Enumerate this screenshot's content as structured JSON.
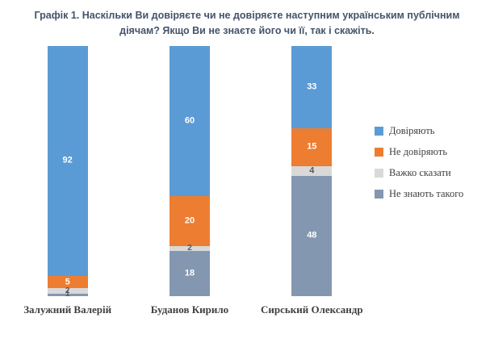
{
  "title": "Графік 1. Наскільки Ви довіряєте чи не довіряєте наступним українським публічним діячам? Якщо Ви не знаєте його чи її, так і скажіть.",
  "colors": {
    "title": "#44546A",
    "trust": "#5B9BD5",
    "distrust": "#ED7D31",
    "hard_to_say": "#D9D9D9",
    "dont_know": "#8497B0",
    "label_light": "#FFFFFF",
    "label_dark": "#595959",
    "category_text": "#404040"
  },
  "chart_data": {
    "type": "bar",
    "stacked": true,
    "percent_stacked": true,
    "orientation": "vertical",
    "grid": false,
    "legend_position": "right",
    "ylim": [
      0,
      100
    ],
    "categories": [
      "Залужний Валерій",
      "Буданов Кирило",
      "Сирський Олександр"
    ],
    "series": [
      {
        "name": "Довіряють",
        "color": "#5B9BD5",
        "values": [
          92,
          60,
          33
        ]
      },
      {
        "name": "Не довіряють",
        "color": "#ED7D31",
        "values": [
          5,
          20,
          15
        ]
      },
      {
        "name": "Важко сказати",
        "color": "#D9D9D9",
        "values": [
          2,
          2,
          4
        ]
      },
      {
        "name": "Не знають такого",
        "color": "#8497B0",
        "values": [
          1,
          18,
          48
        ]
      }
    ]
  }
}
